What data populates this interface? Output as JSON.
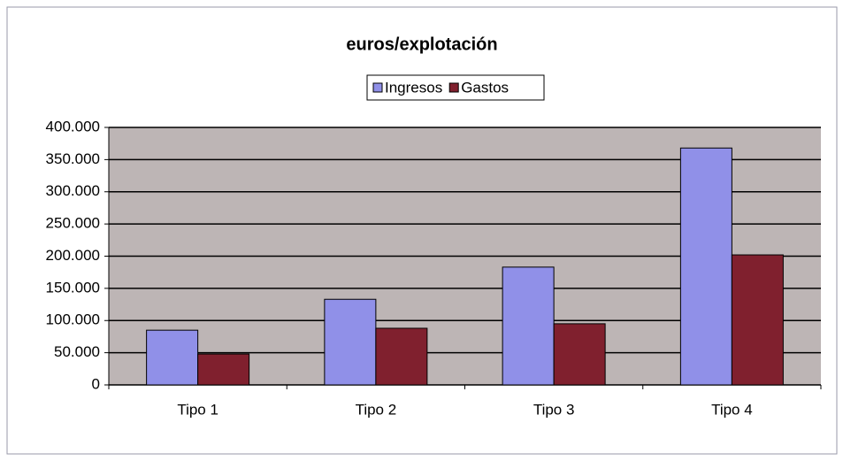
{
  "chart_data": {
    "type": "bar",
    "title": "euros/explotación",
    "categories": [
      "Tipo 1",
      "Tipo 2",
      "Tipo 3",
      "Tipo 4"
    ],
    "series": [
      {
        "name": "Ingresos",
        "color": "#9090e8",
        "values": [
          85000,
          133000,
          183000,
          368000
        ]
      },
      {
        "name": "Gastos",
        "color": "#80202e",
        "values": [
          48000,
          88000,
          95000,
          202000
        ]
      }
    ],
    "ylim": [
      0,
      400000
    ],
    "yticks": [
      0,
      {
        "value": 50000,
        "label": "50.000"
      },
      {
        "value": 100000,
        "label": "100.000"
      },
      {
        "value": 150000,
        "label": "150.000"
      },
      {
        "value": 200000,
        "label": "200.000"
      },
      {
        "value": 250000,
        "label": "250.000"
      },
      {
        "value": 300000,
        "label": "300.000"
      },
      {
        "value": 350000,
        "label": "350.000"
      },
      {
        "value": 400000,
        "label": "400.000"
      }
    ],
    "grid": true,
    "legend": "top"
  }
}
